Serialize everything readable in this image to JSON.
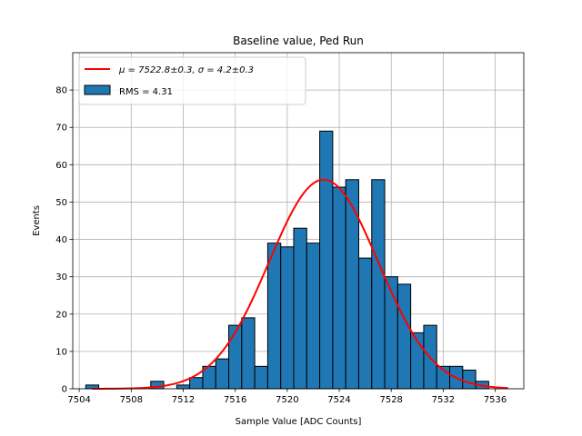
{
  "chart_data": {
    "type": "bar",
    "title": "Baseline value, Ped Run",
    "xlabel": "Sample Value [ADC Counts]",
    "ylabel": "Events",
    "xlim": [
      7503.5,
      7538.2
    ],
    "ylim": [
      0,
      90
    ],
    "xticks": [
      7504,
      7508,
      7512,
      7516,
      7520,
      7524,
      7528,
      7532,
      7536
    ],
    "yticks": [
      0,
      10,
      20,
      30,
      40,
      50,
      60,
      70,
      80
    ],
    "grid": true,
    "bin_width": 1.0,
    "histogram": {
      "name": "RMS = 4.31",
      "bin_lefts": [
        7504.5,
        7505.5,
        7506.5,
        7507.5,
        7508.5,
        7509.5,
        7510.5,
        7511.5,
        7512.5,
        7513.5,
        7514.5,
        7515.5,
        7516.5,
        7517.5,
        7518.5,
        7519.5,
        7520.5,
        7521.5,
        7522.5,
        7523.5,
        7524.5,
        7525.5,
        7526.5,
        7527.5,
        7528.5,
        7529.5,
        7530.5,
        7531.5,
        7532.5,
        7533.5,
        7534.5
      ],
      "counts": [
        1,
        0,
        0,
        0,
        0,
        2,
        0,
        1,
        3,
        6,
        8,
        17,
        19,
        6,
        39,
        38,
        43,
        39,
        69,
        54,
        56,
        35,
        56,
        30,
        28,
        15,
        17,
        6,
        6,
        5,
        2
      ],
      "color": "#1f77b4",
      "edge_color": "#000000"
    },
    "fit": {
      "name": "μ = 7522.8±0.3, σ = 4.2±0.3",
      "mu": 7522.8,
      "sigma": 4.2,
      "amplitude": 56,
      "x_range": [
        7505,
        7537
      ],
      "color": "#ff0000"
    },
    "legend": {
      "position": "top-left",
      "entries": [
        {
          "label_prefix": "μ = 7522.8±0.3, ",
          "label_suffix": "σ = 4.2±0.3",
          "kind": "line"
        },
        {
          "label": "RMS = 4.31",
          "kind": "patch"
        }
      ]
    }
  }
}
